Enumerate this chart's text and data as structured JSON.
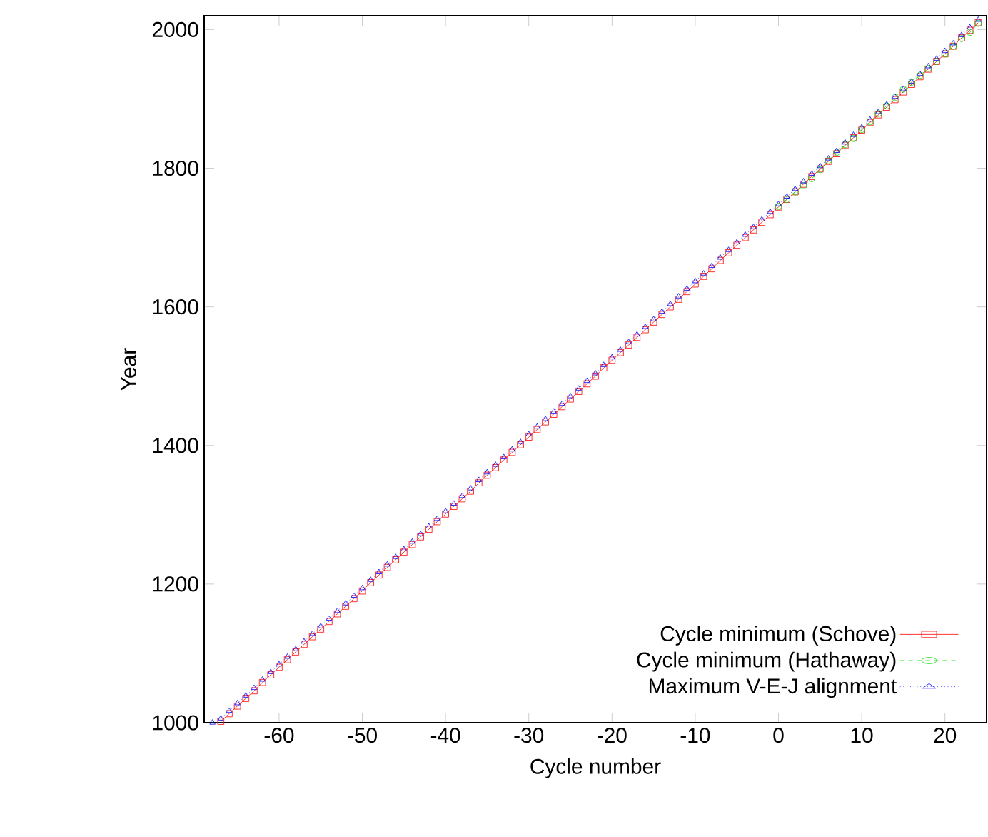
{
  "chart_data": {
    "type": "line",
    "xlabel": "Cycle number",
    "ylabel": "Year",
    "xlim": [
      -69,
      25
    ],
    "ylim": [
      1000,
      2020
    ],
    "xticks": [
      -60,
      -50,
      -40,
      -30,
      -20,
      -10,
      0,
      10,
      20
    ],
    "yticks": [
      1000,
      1200,
      1400,
      1600,
      1800,
      2000
    ],
    "grid": false,
    "legend": "bottom right",
    "series": [
      {
        "name": "Cycle minimum (Schove)",
        "color": "#ff0000",
        "marker": "square",
        "line_style": "solid",
        "x": [
          -67,
          -66,
          -65,
          -64,
          -63,
          -62,
          -61,
          -60,
          -59,
          -58,
          -57,
          -56,
          -55,
          -54,
          -53,
          -52,
          -51,
          -50,
          -49,
          -48,
          -47,
          -46,
          -45,
          -44,
          -43,
          -42,
          -41,
          -40,
          -39,
          -38,
          -37,
          -36,
          -35,
          -34,
          -33,
          -32,
          -31,
          -30,
          -29,
          -28,
          -27,
          -26,
          -25,
          -24,
          -23,
          -22,
          -21,
          -20,
          -19,
          -18,
          -17,
          -16,
          -15,
          -14,
          -13,
          -12,
          -11,
          -10,
          -9,
          -8,
          -7,
          -6,
          -5,
          -4,
          -3,
          -2,
          -1,
          0,
          1,
          2,
          3,
          4,
          5,
          6,
          7,
          8,
          9,
          10,
          11,
          12,
          13,
          14,
          15,
          16,
          17,
          18,
          19,
          20,
          21,
          22,
          23,
          24
        ],
        "values": [
          1002,
          1013,
          1024,
          1035,
          1046,
          1058,
          1069,
          1080,
          1091,
          1102,
          1113,
          1124,
          1135,
          1146,
          1157,
          1168,
          1179,
          1190,
          1202,
          1213,
          1224,
          1235,
          1246,
          1257,
          1268,
          1279,
          1290,
          1301,
          1312,
          1323,
          1334,
          1346,
          1357,
          1368,
          1379,
          1390,
          1401,
          1412,
          1423,
          1434,
          1445,
          1456,
          1467,
          1478,
          1489,
          1500,
          1512,
          1523,
          1534,
          1545,
          1556,
          1567,
          1578,
          1589,
          1600,
          1611,
          1622,
          1633,
          1644,
          1655,
          1667,
          1678,
          1689,
          1700,
          1711,
          1722,
          1733,
          1744,
          1755,
          1766,
          1777,
          1788,
          1799,
          1810,
          1821,
          1833,
          1844,
          1855,
          1866,
          1877,
          1888,
          1899,
          1910,
          1921,
          1932,
          1943,
          1954,
          1965,
          1976,
          1988,
          1999,
          2010
        ]
      },
      {
        "name": "Cycle minimum (Hathaway)",
        "color": "#00dd00",
        "marker": "circle",
        "line_style": "dashed",
        "x": [
          0,
          1,
          2,
          3,
          4,
          5,
          6,
          7,
          8,
          9,
          10,
          11,
          12,
          13,
          14,
          15,
          16,
          17,
          18,
          19,
          20,
          21,
          22,
          23,
          24
        ],
        "values": [
          1745,
          1755,
          1766,
          1775,
          1785,
          1798,
          1811,
          1823,
          1834,
          1843,
          1856,
          1867,
          1879,
          1890,
          1902,
          1914,
          1924,
          1934,
          1944,
          1954,
          1965,
          1976,
          1987,
          1996,
          2009
        ]
      },
      {
        "name": "Maximum V-E-J alignment",
        "color": "#0000ff",
        "marker": "triangle",
        "line_style": "dotted",
        "x": [
          -68,
          -67,
          -66,
          -65,
          -64,
          -63,
          -62,
          -61,
          -60,
          -59,
          -58,
          -57,
          -56,
          -55,
          -54,
          -53,
          -52,
          -51,
          -50,
          -49,
          -48,
          -47,
          -46,
          -45,
          -44,
          -43,
          -42,
          -41,
          -40,
          -39,
          -38,
          -37,
          -36,
          -35,
          -34,
          -33,
          -32,
          -31,
          -30,
          -29,
          -28,
          -27,
          -26,
          -25,
          -24,
          -23,
          -22,
          -21,
          -20,
          -19,
          -18,
          -17,
          -16,
          -15,
          -14,
          -13,
          -12,
          -11,
          -10,
          -9,
          -8,
          -7,
          -6,
          -5,
          -4,
          -3,
          -2,
          -1,
          0,
          1,
          2,
          3,
          4,
          5,
          6,
          7,
          8,
          9,
          10,
          11,
          12,
          13,
          14,
          15,
          16,
          17,
          18,
          19,
          20,
          21,
          22,
          23,
          24
        ],
        "values": [
          1000,
          1006,
          1017,
          1028,
          1039,
          1050,
          1062,
          1073,
          1084,
          1095,
          1106,
          1117,
          1128,
          1139,
          1150,
          1161,
          1172,
          1183,
          1194,
          1206,
          1217,
          1228,
          1239,
          1250,
          1261,
          1272,
          1283,
          1294,
          1305,
          1316,
          1327,
          1338,
          1350,
          1361,
          1372,
          1383,
          1394,
          1405,
          1416,
          1427,
          1438,
          1449,
          1460,
          1471,
          1482,
          1493,
          1504,
          1516,
          1527,
          1538,
          1549,
          1560,
          1571,
          1582,
          1593,
          1604,
          1615,
          1626,
          1637,
          1648,
          1659,
          1671,
          1682,
          1693,
          1704,
          1715,
          1726,
          1737,
          1748,
          1759,
          1770,
          1781,
          1792,
          1803,
          1814,
          1825,
          1837,
          1848,
          1859,
          1870,
          1881,
          1892,
          1903,
          1914,
          1925,
          1936,
          1947,
          1958,
          1969,
          1980,
          1992,
          2003,
          2014
        ]
      }
    ]
  }
}
